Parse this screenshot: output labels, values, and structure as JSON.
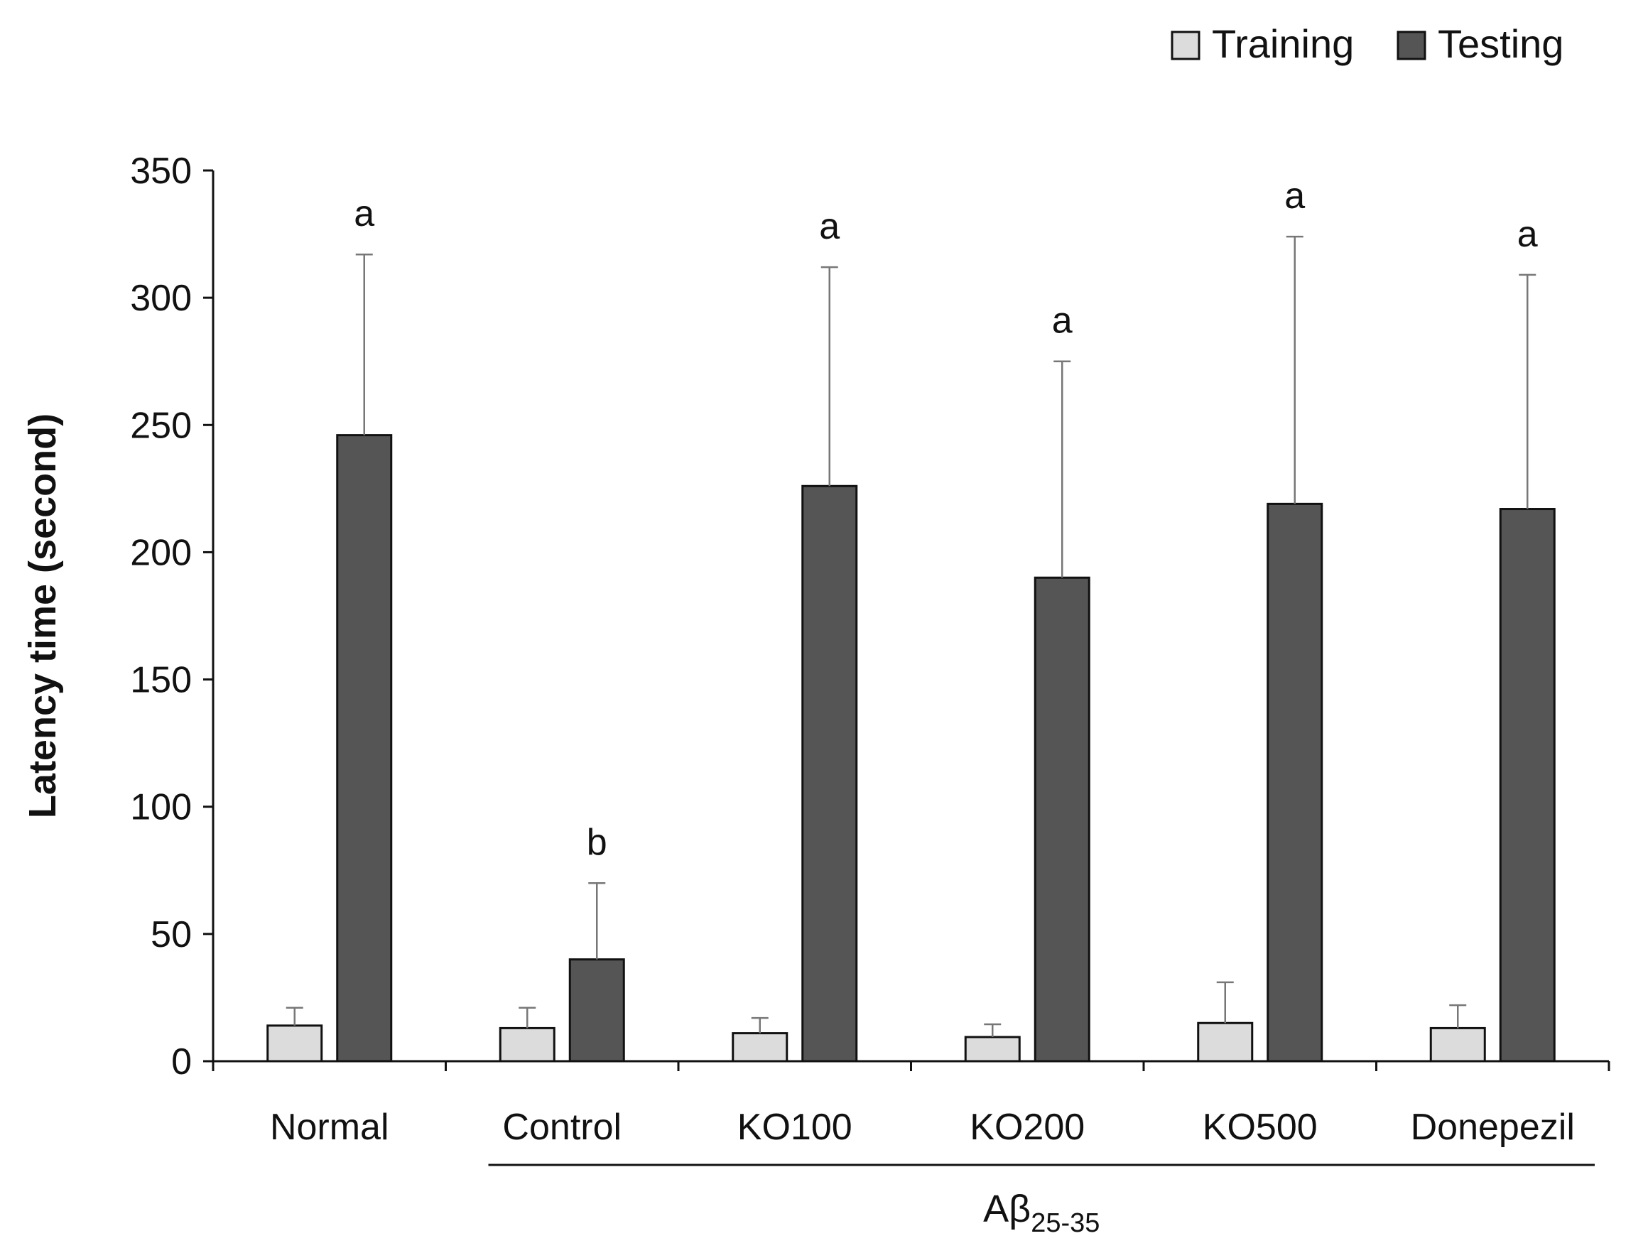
{
  "chart_data": {
    "type": "bar",
    "title": "",
    "ylabel": "Latency time (second)",
    "xlabel": "",
    "ylim": [
      0,
      350
    ],
    "yticks": [
      0,
      50,
      100,
      150,
      200,
      250,
      300,
      350
    ],
    "categories": [
      "Normal",
      "Control",
      "KO100",
      "KO200",
      "KO500",
      "Donepezil"
    ],
    "series": [
      {
        "name": "Training",
        "color": "#dcdcdc",
        "values": [
          14,
          13,
          11,
          9.5,
          15,
          13
        ],
        "errors": [
          7,
          8,
          6,
          5,
          16,
          9
        ]
      },
      {
        "name": "Testing",
        "color": "#555555",
        "values": [
          246,
          40,
          226,
          190,
          219,
          217
        ],
        "errors": [
          71,
          30,
          86,
          85,
          105,
          92
        ]
      }
    ],
    "significance_letters": [
      "a",
      "b",
      "a",
      "a",
      "a",
      "a"
    ],
    "group_bracket": {
      "label_main": "Aβ",
      "label_sub": "25-35",
      "from_category": "Control",
      "to_category": "Donepezil"
    },
    "legend_position": "top-right"
  }
}
